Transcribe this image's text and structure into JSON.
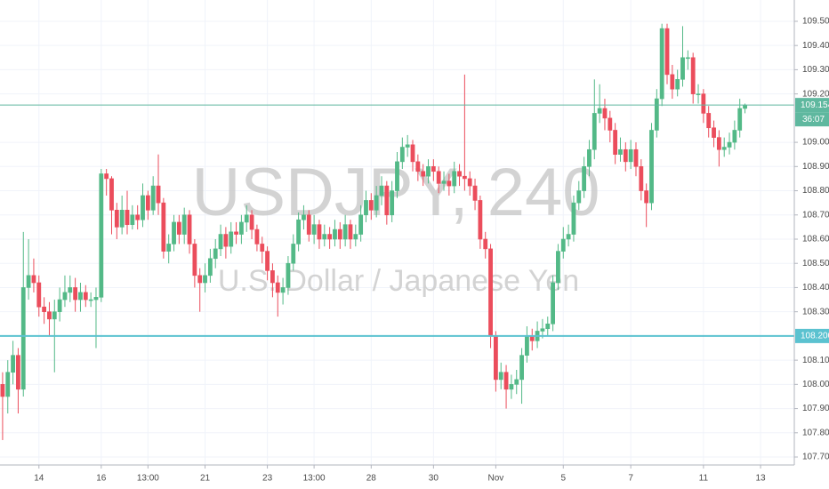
{
  "chart_data": {
    "type": "candlestick",
    "title": "USDJPY, 240",
    "subtitle": "U.S. Dollar / Japanese Yen",
    "up_color": "#53b987",
    "down_color": "#eb4d5c",
    "grid": true,
    "xlim": [
      -0.5,
      152.5
    ],
    "xticks": [
      {
        "value": 7,
        "label": "14"
      },
      {
        "value": 19,
        "label": "16"
      },
      {
        "value": 28,
        "label": "13:00"
      },
      {
        "value": 39,
        "label": "21"
      },
      {
        "value": 51,
        "label": "23"
      },
      {
        "value": 60,
        "label": "13:00"
      },
      {
        "value": 71,
        "label": "28"
      },
      {
        "value": 83,
        "label": "30"
      },
      {
        "value": 95,
        "label": "Nov"
      },
      {
        "value": 108,
        "label": "5"
      },
      {
        "value": 121,
        "label": "7"
      },
      {
        "value": 135,
        "label": "11"
      },
      {
        "value": 146,
        "label": "13"
      }
    ],
    "ylim": [
      107.667,
      109.588
    ],
    "yticks": [
      {
        "value": 107.7,
        "label": "107.700"
      },
      {
        "value": 107.8,
        "label": "107.800"
      },
      {
        "value": 107.9,
        "label": "107.900"
      },
      {
        "value": 108.0,
        "label": "108.000"
      },
      {
        "value": 108.1,
        "label": "108.100"
      },
      {
        "value": 108.3,
        "label": "108.300"
      },
      {
        "value": 108.4,
        "label": "108.400"
      },
      {
        "value": 108.5,
        "label": "108.500"
      },
      {
        "value": 108.6,
        "label": "108.600"
      },
      {
        "value": 108.7,
        "label": "108.700"
      },
      {
        "value": 108.8,
        "label": "108.800"
      },
      {
        "value": 108.9,
        "label": "108.900"
      },
      {
        "value": 109.0,
        "label": "109.000"
      },
      {
        "value": 109.2,
        "label": "109.200"
      },
      {
        "value": 109.3,
        "label": "109.300"
      },
      {
        "value": 109.4,
        "label": "109.400"
      },
      {
        "value": 109.5,
        "label": "109.500"
      }
    ],
    "horizontal_lines": [
      {
        "value": 108.2,
        "label": "108.200",
        "color": "#5bc2d0"
      }
    ],
    "last_price_color": "#5fb89f",
    "countdown": "36:07",
    "open": [
      108.0,
      107.95,
      108.05,
      108.12,
      107.98,
      108.4,
      108.45,
      108.42,
      108.32,
      108.3,
      108.27,
      108.3,
      108.35,
      108.38,
      108.4,
      108.35,
      108.38,
      108.35,
      108.35,
      108.36,
      108.87,
      108.85,
      108.72,
      108.65,
      108.72,
      108.66,
      108.7,
      108.68,
      108.78,
      108.72,
      108.82,
      108.75,
      108.55,
      108.58,
      108.67,
      108.62,
      108.7,
      108.58,
      108.45,
      108.42,
      108.45,
      108.52,
      108.56,
      108.62,
      108.57,
      108.63,
      108.62,
      108.67,
      108.7,
      108.64,
      108.58,
      108.55,
      108.47,
      108.42,
      108.38,
      108.4,
      108.5,
      108.58,
      108.68,
      108.7,
      108.62,
      108.66,
      108.6,
      108.62,
      108.6,
      108.64,
      108.6,
      108.66,
      108.6,
      108.62,
      108.7,
      108.76,
      108.72,
      108.78,
      108.82,
      108.7,
      108.8,
      108.92,
      108.98,
      108.99,
      108.92,
      108.88,
      108.86,
      108.9,
      108.88,
      108.83,
      108.84,
      108.82,
      108.88,
      108.86,
      108.85,
      108.82,
      108.76,
      108.6,
      108.56,
      108.2,
      108.02,
      108.05,
      107.98,
      108.0,
      108.02,
      108.12,
      108.2,
      108.18,
      108.22,
      108.23,
      108.25,
      108.42,
      108.55,
      108.6,
      108.62,
      108.75,
      108.8,
      108.9,
      108.97,
      109.12,
      109.14,
      109.1,
      109.05,
      108.95,
      108.97,
      108.92,
      108.97,
      108.9,
      108.8,
      108.75,
      109.05,
      109.18,
      109.47,
      109.28,
      109.22,
      109.26,
      109.35,
      109.35,
      109.2,
      109.2,
      109.12,
      109.06,
      109.02,
      108.97,
      108.98,
      109.0,
      109.05,
      109.14
    ],
    "high": [
      108.05,
      108.1,
      108.18,
      108.15,
      108.63,
      108.6,
      108.52,
      108.45,
      108.36,
      108.34,
      108.35,
      108.4,
      108.45,
      108.45,
      108.44,
      108.42,
      108.41,
      108.38,
      108.4,
      108.89,
      108.89,
      108.86,
      108.75,
      108.78,
      108.8,
      108.74,
      108.74,
      108.83,
      108.8,
      108.86,
      108.95,
      108.77,
      108.62,
      108.7,
      108.7,
      108.73,
      108.72,
      108.6,
      108.48,
      108.5,
      108.56,
      108.6,
      108.66,
      108.65,
      108.67,
      108.67,
      108.7,
      108.74,
      108.72,
      108.66,
      108.61,
      108.57,
      108.5,
      108.45,
      108.44,
      108.53,
      108.62,
      108.71,
      108.74,
      108.72,
      108.7,
      108.68,
      108.66,
      108.65,
      108.68,
      108.67,
      108.7,
      108.68,
      108.66,
      108.74,
      108.8,
      108.79,
      108.82,
      108.86,
      108.84,
      108.84,
      108.96,
      109.02,
      109.03,
      109.01,
      108.95,
      108.91,
      108.93,
      108.93,
      108.9,
      108.88,
      108.87,
      108.92,
      108.91,
      109.28,
      108.88,
      108.85,
      108.78,
      108.63,
      108.58,
      108.22,
      108.09,
      108.08,
      108.04,
      108.06,
      108.15,
      108.24,
      108.23,
      108.26,
      108.27,
      108.28,
      108.45,
      108.58,
      108.65,
      108.66,
      108.78,
      108.84,
      108.94,
      109.01,
      109.26,
      109.24,
      109.18,
      109.13,
      109.08,
      109.02,
      109.0,
      109.01,
      109.0,
      108.93,
      108.83,
      109.08,
      109.22,
      109.49,
      109.49,
      109.32,
      109.3,
      109.48,
      109.38,
      109.37,
      109.24,
      109.22,
      109.15,
      109.09,
      109.05,
      109.02,
      109.04,
      109.09,
      109.18,
      109.16
    ],
    "low": [
      107.77,
      107.88,
      108.0,
      107.88,
      107.95,
      108.35,
      108.38,
      108.28,
      108.25,
      108.2,
      108.05,
      108.26,
      108.32,
      108.34,
      108.3,
      108.3,
      108.32,
      108.32,
      108.15,
      108.34,
      108.78,
      108.62,
      108.6,
      108.62,
      108.62,
      108.64,
      108.64,
      108.65,
      108.68,
      108.7,
      108.7,
      108.52,
      108.5,
      108.55,
      108.58,
      108.58,
      108.54,
      108.4,
      108.3,
      108.38,
      108.42,
      108.48,
      108.53,
      108.52,
      108.54,
      108.58,
      108.58,
      108.63,
      108.6,
      108.55,
      108.5,
      108.43,
      108.36,
      108.28,
      108.33,
      108.37,
      108.47,
      108.55,
      108.64,
      108.59,
      108.58,
      108.56,
      108.57,
      108.56,
      108.57,
      108.56,
      108.57,
      108.56,
      108.57,
      108.59,
      108.67,
      108.68,
      108.69,
      108.74,
      108.66,
      108.67,
      108.77,
      108.89,
      108.94,
      108.88,
      108.84,
      108.82,
      108.83,
      108.84,
      108.79,
      108.8,
      108.78,
      108.79,
      108.82,
      108.8,
      108.78,
      108.72,
      108.56,
      108.52,
      108.15,
      107.97,
      107.98,
      107.9,
      107.94,
      107.96,
      107.92,
      108.09,
      108.14,
      108.15,
      108.19,
      108.2,
      108.22,
      108.39,
      108.52,
      108.57,
      108.59,
      108.72,
      108.77,
      108.86,
      108.93,
      109.08,
      109.05,
      109.0,
      108.91,
      108.92,
      108.88,
      108.89,
      108.86,
      108.76,
      108.65,
      108.72,
      109.02,
      109.15,
      109.24,
      109.18,
      109.19,
      109.23,
      109.3,
      109.16,
      109.16,
      109.08,
      109.02,
      108.98,
      108.9,
      108.94,
      108.95,
      108.97,
      109.02,
      109.12
    ],
    "close": [
      107.95,
      108.05,
      108.12,
      107.98,
      108.4,
      108.45,
      108.42,
      108.32,
      108.3,
      108.27,
      108.3,
      108.35,
      108.38,
      108.4,
      108.35,
      108.38,
      108.35,
      108.35,
      108.36,
      108.87,
      108.85,
      108.72,
      108.65,
      108.72,
      108.66,
      108.7,
      108.68,
      108.78,
      108.72,
      108.82,
      108.75,
      108.55,
      108.58,
      108.67,
      108.62,
      108.7,
      108.58,
      108.45,
      108.42,
      108.45,
      108.52,
      108.56,
      108.62,
      108.57,
      108.63,
      108.62,
      108.67,
      108.7,
      108.64,
      108.58,
      108.55,
      108.47,
      108.42,
      108.38,
      108.4,
      108.5,
      108.58,
      108.68,
      108.7,
      108.62,
      108.66,
      108.6,
      108.62,
      108.6,
      108.64,
      108.6,
      108.66,
      108.6,
      108.62,
      108.7,
      108.76,
      108.72,
      108.78,
      108.82,
      108.7,
      108.8,
      108.92,
      108.98,
      108.99,
      108.92,
      108.88,
      108.86,
      108.9,
      108.88,
      108.83,
      108.84,
      108.82,
      108.88,
      108.86,
      108.85,
      108.82,
      108.76,
      108.6,
      108.56,
      108.2,
      108.02,
      108.05,
      107.98,
      108.0,
      108.02,
      108.12,
      108.2,
      108.18,
      108.22,
      108.23,
      108.25,
      108.42,
      108.55,
      108.6,
      108.62,
      108.75,
      108.8,
      108.9,
      108.97,
      109.12,
      109.14,
      109.1,
      109.05,
      108.95,
      108.97,
      108.92,
      108.97,
      108.9,
      108.8,
      108.75,
      109.05,
      109.18,
      109.47,
      109.28,
      109.22,
      109.26,
      109.35,
      109.35,
      109.2,
      109.2,
      109.12,
      109.06,
      109.02,
      108.97,
      108.98,
      109.0,
      109.05,
      109.14,
      109.154
    ]
  }
}
